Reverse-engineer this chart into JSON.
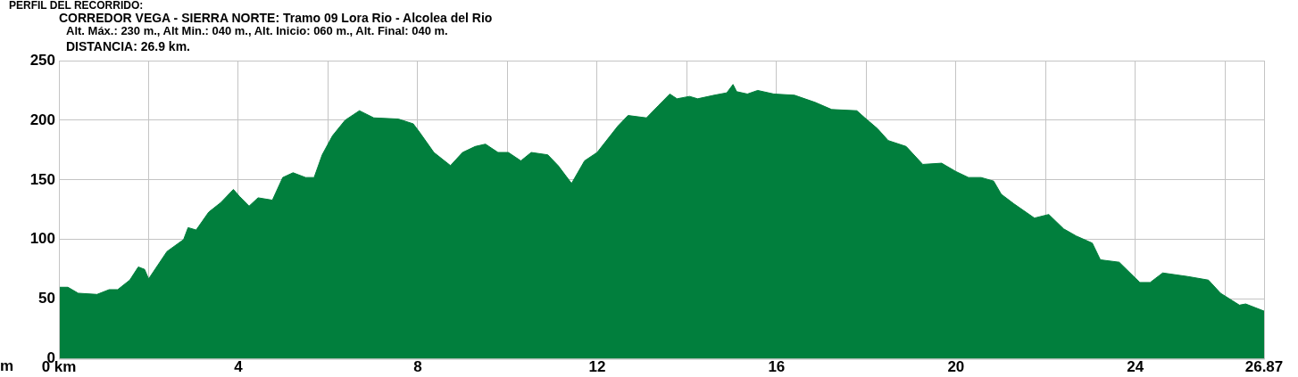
{
  "chart_data": {
    "type": "area",
    "title": "CORREDOR VEGA - SIERRA NORTE: Tramo 09 Lora Rio - Alcolea del Rio",
    "subtitle": "Alt. Máx.: 230 m., Alt Min.: 040 m., Alt. Inicio: 060 m., Alt. Final: 040 m.",
    "annotations": [
      "PERFIL DEL RECORRIDO:",
      "DISTANCIA: 26.9 km."
    ],
    "ylabel": "m",
    "color": "#017f3d",
    "x": [
      0,
      0.2,
      0.43,
      0.85,
      1.12,
      1.31,
      1.58,
      1.77,
      1.91,
      2.0,
      2.41,
      2.78,
      2.88,
      3.06,
      3.34,
      3.61,
      3.89,
      4.03,
      4.24,
      4.44,
      4.76,
      4.99,
      5.22,
      5.5,
      5.69,
      5.87,
      6.1,
      6.38,
      6.7,
      7.02,
      7.57,
      7.9,
      8.04,
      8.36,
      8.73,
      9.0,
      9.28,
      9.51,
      9.79,
      10.02,
      10.3,
      10.53,
      10.9,
      11.13,
      11.43,
      11.72,
      12.0,
      12.46,
      12.69,
      13.1,
      13.36,
      13.62,
      13.78,
      14.06,
      14.24,
      14.61,
      14.89,
      15.03,
      15.11,
      15.35,
      15.58,
      15.94,
      16.4,
      16.86,
      17.23,
      17.79,
      17.97,
      18.25,
      18.49,
      18.89,
      19.26,
      19.68,
      20.0,
      20.28,
      20.56,
      20.84,
      21.01,
      21.29,
      21.75,
      22.07,
      22.4,
      22.68,
      23.04,
      23.22,
      23.64,
      24.1,
      24.33,
      24.61,
      25.17,
      25.63,
      25.9,
      26.32,
      26.46,
      26.87
    ],
    "values": [
      60,
      60,
      55,
      54,
      58,
      58,
      66,
      77,
      75,
      67,
      90,
      100,
      110,
      108,
      123,
      131,
      142,
      136,
      128,
      135,
      133,
      152,
      156,
      152,
      152,
      171,
      187,
      200,
      208,
      202,
      201,
      197,
      190,
      173,
      162,
      173,
      178,
      180,
      173,
      173,
      166,
      173,
      171,
      162,
      147,
      166,
      173,
      195,
      204,
      202,
      212,
      222,
      218,
      220,
      218,
      221,
      223,
      230,
      224,
      222,
      225,
      222,
      221,
      215,
      209,
      208,
      202,
      193,
      183,
      178,
      163,
      164,
      157,
      152,
      152,
      149,
      138,
      130,
      118,
      121,
      109,
      103,
      97,
      83,
      81,
      64,
      64,
      72,
      69,
      66,
      55,
      45,
      46,
      40
    ],
    "xlim": [
      0,
      26.87
    ],
    "xticks": [
      {
        "value": 0,
        "label": "0 km"
      },
      {
        "value": 2,
        "label": null
      },
      4,
      {
        "value": 6,
        "label": null
      },
      8,
      {
        "value": 10,
        "label": null
      },
      12,
      {
        "value": 14,
        "label": null
      },
      16,
      {
        "value": 18,
        "label": null
      },
      20,
      {
        "value": 22,
        "label": null
      },
      24,
      {
        "value": 26,
        "label": null
      },
      26.87
    ],
    "ylim": [
      0,
      250
    ],
    "yticks": [
      0,
      50,
      100,
      150,
      200,
      250
    ],
    "grid": true,
    "marker": "none"
  }
}
